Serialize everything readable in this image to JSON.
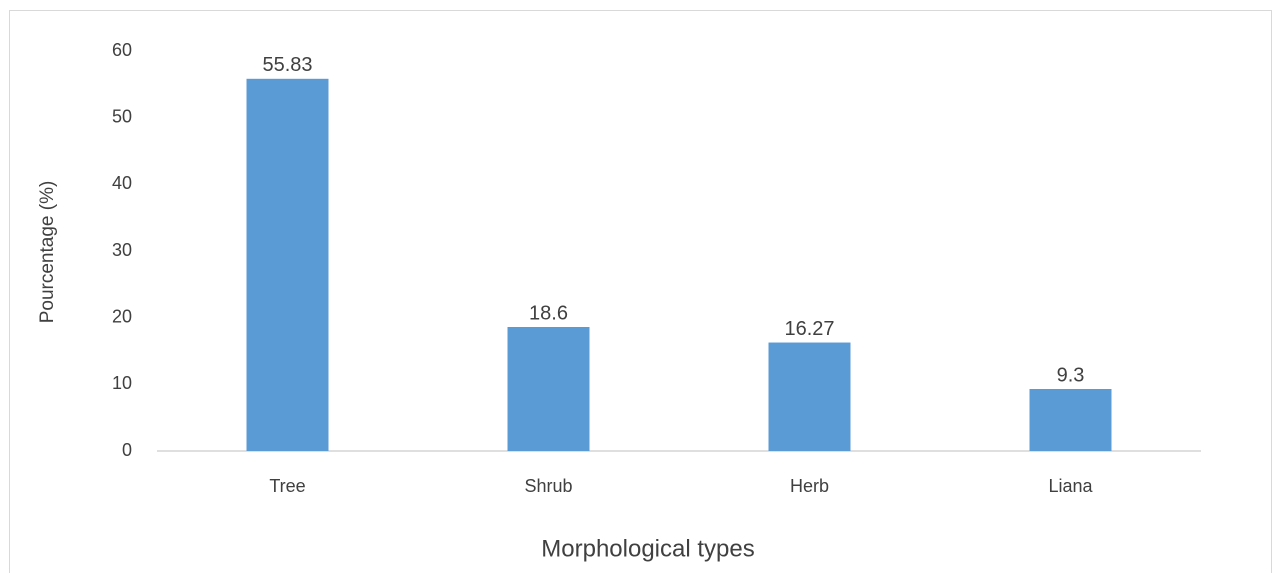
{
  "chart_data": {
    "type": "bar",
    "categories": [
      "Tree",
      "Shrub",
      "Herb",
      "Liana"
    ],
    "values": [
      55.83,
      18.6,
      16.27,
      9.3
    ],
    "color": "#5b9bd5",
    "ylim": [
      0,
      60
    ],
    "yticks": [
      0,
      10,
      20,
      30,
      40,
      50,
      60
    ],
    "grid": false,
    "x_label": "Morphological types",
    "y_label": "Pourcentage (%)"
  }
}
